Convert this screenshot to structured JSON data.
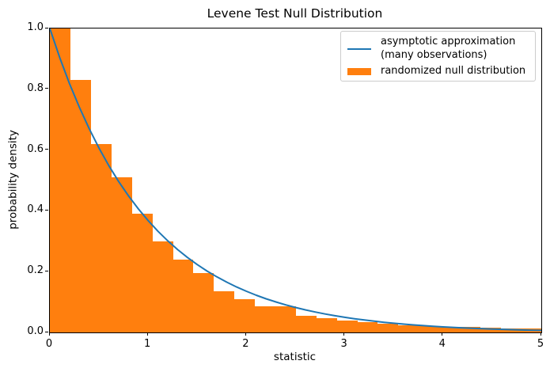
{
  "figure": {
    "title": "Levene Test Null Distribution",
    "xlabel": "statistic",
    "ylabel": "probability density"
  },
  "legend": {
    "items": [
      {
        "type": "line",
        "color": "#1f77b4",
        "label_line1": "asymptotic approximation",
        "label_line2": "(many observations)"
      },
      {
        "type": "patch",
        "color": "#ff7f0e",
        "label": "randomized null distribution"
      }
    ]
  },
  "chart_data": {
    "type": "histogram+line",
    "title": "Levene Test Null Distribution",
    "xlabel": "statistic",
    "ylabel": "probability density",
    "xlim": [
      0,
      5
    ],
    "ylim": [
      0,
      1.0
    ],
    "grid": false,
    "legend_position": "upper right",
    "xticks": {
      "values": [
        0,
        1,
        2,
        3,
        4,
        5
      ],
      "labels": [
        "0",
        "1",
        "2",
        "3",
        "4",
        "5"
      ]
    },
    "yticks": {
      "values": [
        0,
        0.2,
        0.4,
        0.6,
        0.8,
        1.0
      ],
      "labels": [
        "0.0",
        "0.2",
        "0.4",
        "0.6",
        "0.8",
        "1.0"
      ]
    },
    "series": [
      {
        "name": "asymptotic approximation (many observations)",
        "type": "line",
        "color": "#1f77b4",
        "x": [
          0.0,
          0.1,
          0.2,
          0.3,
          0.4,
          0.5,
          0.6,
          0.7,
          0.8,
          0.9,
          1.0,
          1.1,
          1.2,
          1.3,
          1.4,
          1.5,
          1.6,
          1.7,
          1.8,
          1.9,
          2.0,
          2.1,
          2.2,
          2.3,
          2.4,
          2.5,
          2.6,
          2.7,
          2.8,
          2.9,
          3.0,
          3.1,
          3.2,
          3.3,
          3.4,
          3.5,
          3.6,
          3.7,
          3.8,
          3.9,
          4.0,
          4.1,
          4.2,
          4.3,
          4.4,
          4.5,
          4.6,
          4.7,
          4.8,
          4.9,
          5.0
        ],
        "y": [
          1.0,
          0.9048,
          0.8187,
          0.7408,
          0.6703,
          0.6065,
          0.5488,
          0.4966,
          0.4493,
          0.4066,
          0.3679,
          0.3329,
          0.3012,
          0.2725,
          0.2466,
          0.2231,
          0.2019,
          0.1827,
          0.1653,
          0.1496,
          0.1353,
          0.1225,
          0.1108,
          0.1003,
          0.0907,
          0.0821,
          0.0743,
          0.0672,
          0.0608,
          0.055,
          0.0498,
          0.045,
          0.0408,
          0.0369,
          0.0334,
          0.0302,
          0.0273,
          0.0247,
          0.0224,
          0.0202,
          0.0183,
          0.0166,
          0.015,
          0.0136,
          0.0123,
          0.0111,
          0.0101,
          0.0091,
          0.0082,
          0.0074,
          0.0067
        ]
      },
      {
        "name": "randomized null distribution",
        "type": "histogram",
        "color": "#ff7f0e",
        "bin_edges": [
          0.0,
          0.208,
          0.417,
          0.625,
          0.833,
          1.042,
          1.25,
          1.458,
          1.667,
          1.875,
          2.083,
          2.292,
          2.5,
          2.708,
          2.917,
          3.125,
          3.333,
          3.542,
          3.75,
          3.958,
          4.167,
          4.375,
          4.583,
          4.792,
          5.0
        ],
        "densities": [
          1.0,
          0.83,
          0.62,
          0.51,
          0.39,
          0.3,
          0.24,
          0.195,
          0.135,
          0.11,
          0.085,
          0.085,
          0.055,
          0.048,
          0.04,
          0.034,
          0.029,
          0.023,
          0.021,
          0.018,
          0.018,
          0.016,
          0.013,
          0.013
        ]
      }
    ]
  }
}
